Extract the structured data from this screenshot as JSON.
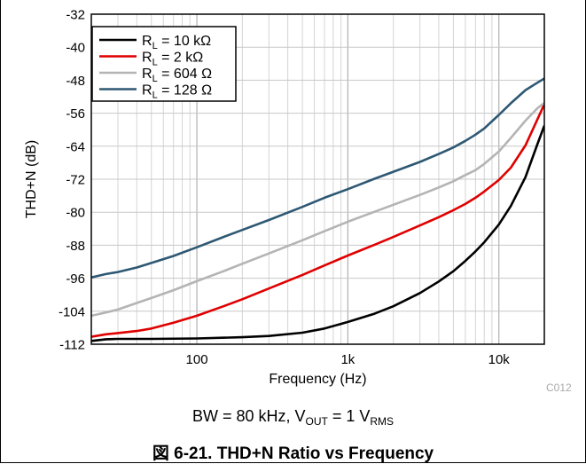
{
  "chart_data": {
    "type": "line",
    "xscale": "log",
    "xlim": [
      20,
      20000
    ],
    "ylim": [
      -112,
      -32
    ],
    "xticks": [
      100,
      1000,
      10000
    ],
    "xtick_labels": [
      "100",
      "1k",
      "10k"
    ],
    "yticks": [
      -32,
      -40,
      -48,
      -56,
      -64,
      -72,
      -80,
      -88,
      -96,
      -104,
      -112
    ],
    "ytick_labels": [
      "-32",
      "-40",
      "-48",
      "-56",
      "-64",
      "-72",
      "-80",
      "-88",
      "-96",
      "-104",
      "-112"
    ],
    "xlabel": "Frequency (Hz)",
    "ylabel": "THD+N (dB)",
    "grid": true,
    "legend_position": "top-left",
    "series": [
      {
        "name": "R_L = 10 kΩ",
        "legend": {
          "base": "R",
          "sub": "L",
          "rest": " = 10 kΩ"
        },
        "color": "#000000",
        "x": [
          20,
          25,
          30,
          50,
          100,
          200,
          300,
          500,
          700,
          1000,
          1500,
          2000,
          3000,
          4000,
          5000,
          6000,
          7000,
          8000,
          10000,
          12000,
          15000,
          18000,
          20000
        ],
        "y": [
          -111.2,
          -110.8,
          -110.7,
          -110.7,
          -110.6,
          -110.3,
          -110,
          -109.2,
          -108.2,
          -106.6,
          -104.6,
          -102.8,
          -99.6,
          -96.8,
          -94.3,
          -91.8,
          -89.5,
          -87.3,
          -83,
          -78.5,
          -71.5,
          -63.5,
          -59
        ]
      },
      {
        "name": "R_L = 2 kΩ",
        "legend": {
          "base": "R",
          "sub": "L",
          "rest": " = 2 kΩ"
        },
        "color": "#e00000",
        "x": [
          20,
          25,
          30,
          40,
          50,
          70,
          100,
          150,
          200,
          300,
          500,
          700,
          1000,
          1500,
          2000,
          3000,
          4000,
          5000,
          6000,
          7000,
          8000,
          10000,
          12000,
          15000,
          18000,
          20000
        ],
        "y": [
          -110.2,
          -109.6,
          -109.3,
          -108.8,
          -108.2,
          -106.8,
          -105.1,
          -102.8,
          -101.1,
          -98.5,
          -95.2,
          -92.9,
          -90.5,
          -87.9,
          -86,
          -83.2,
          -81.2,
          -79.5,
          -78,
          -76.5,
          -75,
          -72.2,
          -69.2,
          -63.8,
          -57.5,
          -53.8
        ]
      },
      {
        "name": "R_L = 604 Ω",
        "legend": {
          "base": "R",
          "sub": "L",
          "rest": " = 604 Ω"
        },
        "color": "#b4b4b4",
        "x": [
          20,
          25,
          30,
          40,
          50,
          70,
          100,
          150,
          200,
          300,
          500,
          700,
          1000,
          1500,
          2000,
          3000,
          4000,
          5000,
          6000,
          7000,
          8000,
          10000,
          12000,
          15000,
          18000,
          20000
        ],
        "y": [
          -105.1,
          -104.3,
          -103.6,
          -102,
          -100.8,
          -98.9,
          -96.7,
          -94.3,
          -92.5,
          -90,
          -86.8,
          -84.6,
          -82.3,
          -79.9,
          -78.2,
          -75.8,
          -74,
          -72.5,
          -71,
          -69.8,
          -68.3,
          -65.3,
          -62,
          -57.8,
          -54.8,
          -53.5
        ]
      },
      {
        "name": "R_L = 128 Ω",
        "legend": {
          "base": "R",
          "sub": "L",
          "rest": " = 128 Ω"
        },
        "color": "#2e5873",
        "x": [
          20,
          25,
          30,
          40,
          50,
          70,
          100,
          150,
          200,
          300,
          500,
          700,
          1000,
          1500,
          2000,
          3000,
          4000,
          5000,
          6000,
          7000,
          8000,
          10000,
          12000,
          15000,
          18000,
          20000
        ],
        "y": [
          -95.8,
          -95,
          -94.5,
          -93.4,
          -92.3,
          -90.6,
          -88.5,
          -86,
          -84.3,
          -81.9,
          -78.7,
          -76.5,
          -74.4,
          -71.9,
          -70.2,
          -67.8,
          -65.9,
          -64.3,
          -62.7,
          -61.2,
          -59.7,
          -56.4,
          -53.6,
          -50.4,
          -48.6,
          -47.6
        ]
      }
    ]
  },
  "caption": {
    "prefix": "BW = 80 kHz, V",
    "sub1": "OUT",
    "middle": " = 1 V",
    "sub2": "RMS"
  },
  "source_code": "C012",
  "figure_title": "図 6-21. THD+N Ratio vs Frequency"
}
